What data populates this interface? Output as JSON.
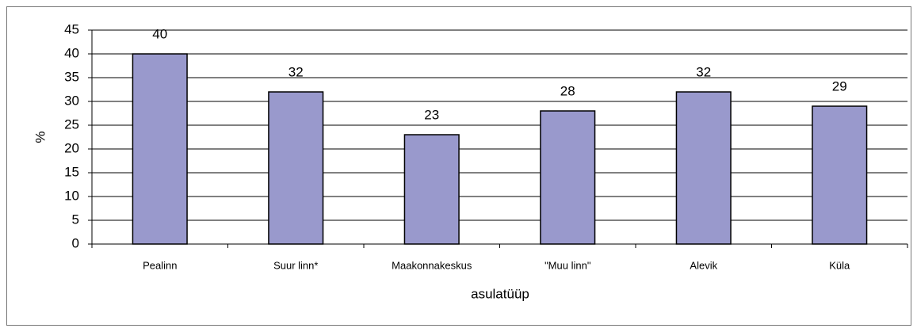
{
  "chart_data": {
    "type": "bar",
    "categories": [
      "Pealinn",
      "Suur linn*",
      "Maakonnakeskus",
      "\"Muu linn\"",
      "Alevik",
      "Küla"
    ],
    "values": [
      40,
      32,
      23,
      28,
      32,
      29
    ],
    "color": "#9999cc",
    "ylabel": "%",
    "xlabel": "asulatüüp",
    "ylim": [
      0,
      45
    ],
    "yticks": [
      0,
      5,
      10,
      15,
      20,
      25,
      30,
      35,
      40,
      45
    ],
    "grid": true,
    "data_labels": true
  }
}
